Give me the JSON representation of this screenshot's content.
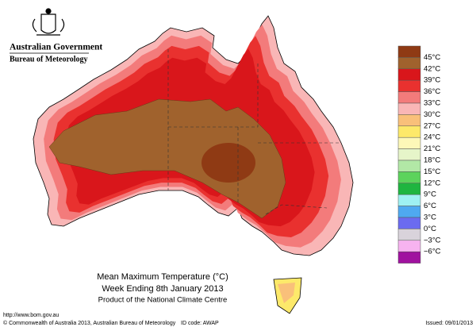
{
  "header": {
    "agency": "Australian Government",
    "bureau": "Bureau of Meteorology"
  },
  "map": {
    "title": "Mean Maximum Temperature (°C)",
    "period": "Week Ending 8th January 2013",
    "product": "Product of the National Climate Centre"
  },
  "legend": {
    "labels": [
      "45°C",
      "42°C",
      "39°C",
      "36°C",
      "33°C",
      "30°C",
      "27°C",
      "24°C",
      "21°C",
      "18°C",
      "15°C",
      "12°C",
      "9°C",
      "6°C",
      "3°C",
      "0°C",
      "−3°C",
      "−6°C"
    ],
    "colors": [
      "#8f3a14",
      "#a0622d",
      "#d9161b",
      "#e9312f",
      "#f37b7b",
      "#f9b6b6",
      "#f9c07a",
      "#fde96a",
      "#fdf8b8",
      "#e6f5c9",
      "#b2e8a6",
      "#5cd35c",
      "#1fb540",
      "#9ff1f2",
      "#4fa9f0",
      "#6b6bf0",
      "#d9d3db",
      "#f7b3f0",
      "#a0129f"
    ]
  },
  "footer": {
    "url": "http://www.bom.gov.au",
    "copyright": "© Commonwealth of Australia 2013, Australian Bureau of Meteorology",
    "id": "ID code: AWAP",
    "issued": "Issued: 09/01/2013"
  }
}
